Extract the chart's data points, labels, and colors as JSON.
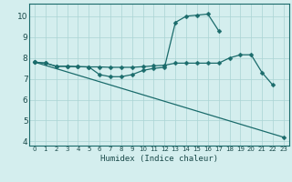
{
  "title": "",
  "xlabel": "Humidex (Indice chaleur)",
  "bg_color": "#d4eeee",
  "grid_color": "#aad4d4",
  "line_color": "#1a6b6b",
  "xlim": [
    -0.5,
    23.5
  ],
  "ylim": [
    3.8,
    10.6
  ],
  "yticks": [
    4,
    5,
    6,
    7,
    8,
    9,
    10
  ],
  "xticks": [
    0,
    1,
    2,
    3,
    4,
    5,
    6,
    7,
    8,
    9,
    10,
    11,
    12,
    13,
    14,
    15,
    16,
    17,
    18,
    19,
    20,
    21,
    22,
    23
  ],
  "curve1_x": [
    0,
    1,
    2,
    3,
    4,
    5,
    6,
    7,
    8,
    9,
    10,
    11,
    12,
    13,
    14,
    15,
    16,
    17,
    18,
    19,
    20,
    21,
    22
  ],
  "curve1_y": [
    7.8,
    7.75,
    7.6,
    7.6,
    7.58,
    7.57,
    7.57,
    7.55,
    7.55,
    7.55,
    7.58,
    7.62,
    7.65,
    7.75,
    7.75,
    7.75,
    7.75,
    7.75,
    8.0,
    8.15,
    8.15,
    7.3,
    6.7
  ],
  "curve2_x": [
    0,
    1,
    2,
    3,
    4,
    5,
    6,
    7,
    8,
    9,
    10,
    11,
    12,
    13,
    14,
    15,
    16,
    17
  ],
  "curve2_y": [
    7.8,
    7.75,
    7.6,
    7.6,
    7.58,
    7.57,
    7.2,
    7.1,
    7.1,
    7.2,
    7.4,
    7.5,
    7.55,
    9.7,
    10.0,
    10.05,
    10.1,
    9.3
  ],
  "curve3_x": [
    0,
    23
  ],
  "curve3_y": [
    7.8,
    4.2
  ]
}
